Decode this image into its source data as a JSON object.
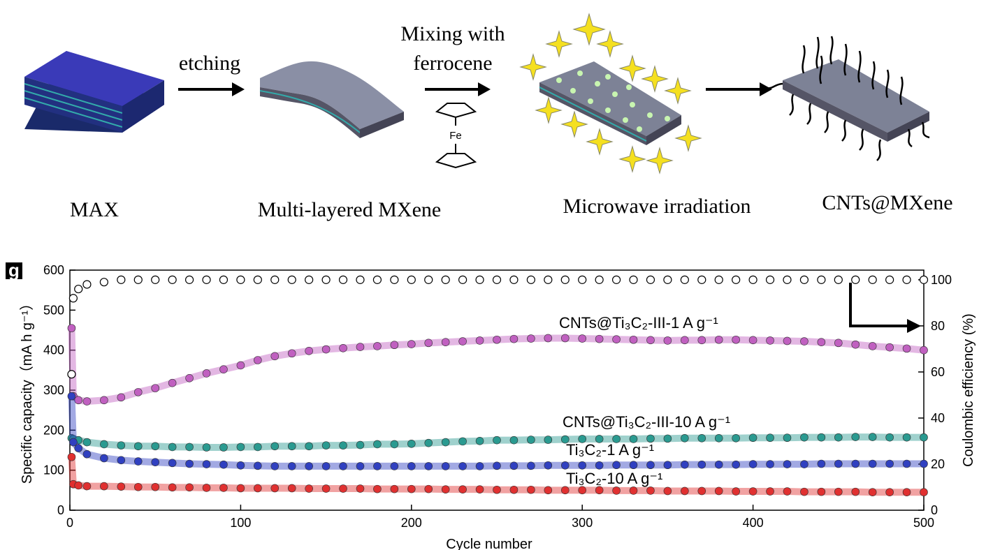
{
  "scheme": {
    "steps": [
      "etching",
      "Mixing with",
      "ferrocene"
    ],
    "fe": "Fe",
    "labels": [
      "MAX",
      "Multi-layered MXene",
      "Microwave irradiation",
      "CNTs@MXene"
    ]
  },
  "chart_data": {
    "type": "scatter",
    "panel": "g",
    "xlabel": "Cycle number",
    "ylabel": "Specific capacity（mA h g⁻¹）",
    "y2label": "Coulombic efficiency (%)",
    "x": [
      1,
      2,
      5,
      10,
      20,
      30,
      40,
      50,
      60,
      70,
      80,
      90,
      100,
      110,
      120,
      130,
      140,
      150,
      160,
      170,
      180,
      190,
      200,
      210,
      220,
      230,
      240,
      250,
      260,
      270,
      280,
      290,
      300,
      310,
      320,
      330,
      340,
      350,
      360,
      370,
      380,
      390,
      400,
      410,
      420,
      430,
      440,
      450,
      460,
      470,
      480,
      490,
      500
    ],
    "xlim": [
      0,
      500
    ],
    "xticks": [
      0,
      100,
      200,
      300,
      400,
      500
    ],
    "ylim": [
      0,
      600
    ],
    "yticks": [
      0,
      100,
      200,
      300,
      400,
      500,
      600
    ],
    "y2lim": [
      0,
      104.2
    ],
    "y2ticks": [
      0,
      20,
      40,
      60,
      80,
      100
    ],
    "series": [
      {
        "name": "CNTs@Ti₃C₂-III-1 A g⁻¹",
        "color": "#c060c0",
        "values": [
          455,
          285,
          275,
          272,
          275,
          282,
          295,
          305,
          318,
          330,
          342,
          352,
          362,
          375,
          385,
          392,
          398,
          402,
          405,
          408,
          410,
          413,
          415,
          418,
          420,
          422,
          424,
          426,
          428,
          429,
          430,
          430,
          429,
          428,
          427,
          426,
          425,
          424,
          425,
          425,
          426,
          426,
          425,
          424,
          423,
          422,
          420,
          418,
          414,
          410,
          407,
          404,
          400
        ]
      },
      {
        "name": "CNTs@Ti₃C₂-III-10 A g⁻¹",
        "color": "#2a9a90",
        "values": [
          180,
          178,
          175,
          170,
          165,
          162,
          160,
          160,
          158,
          158,
          157,
          157,
          158,
          158,
          160,
          160,
          160,
          162,
          162,
          163,
          165,
          165,
          166,
          168,
          170,
          172,
          173,
          175,
          175,
          176,
          176,
          177,
          178,
          178,
          178,
          178,
          179,
          179,
          180,
          180,
          180,
          180,
          181,
          181,
          181,
          182,
          182,
          182,
          183,
          183,
          182,
          182,
          182
        ]
      },
      {
        "name": "Ti₃C₂-1 A g⁻¹",
        "color": "#3040c0",
        "values": [
          285,
          170,
          155,
          140,
          130,
          125,
          122,
          120,
          118,
          116,
          115,
          114,
          112,
          111,
          110,
          110,
          110,
          110,
          110,
          110,
          110,
          110,
          110,
          110,
          110,
          110,
          110,
          111,
          111,
          111,
          112,
          112,
          112,
          112,
          113,
          113,
          113,
          113,
          114,
          114,
          114,
          114,
          115,
          115,
          115,
          115,
          116,
          116,
          116,
          116,
          116,
          116,
          116
        ]
      },
      {
        "name": "Ti₃C₂-10 A g⁻¹",
        "color": "#e03030",
        "values": [
          133,
          65,
          62,
          60,
          60,
          59,
          58,
          58,
          57,
          57,
          56,
          56,
          55,
          55,
          55,
          55,
          54,
          54,
          54,
          54,
          53,
          53,
          53,
          53,
          52,
          52,
          52,
          51,
          51,
          51,
          50,
          50,
          50,
          50,
          49,
          49,
          49,
          48,
          48,
          48,
          48,
          47,
          47,
          47,
          47,
          46,
          46,
          46,
          46,
          45,
          45,
          45,
          45
        ]
      },
      {
        "color": "#000000",
        "axis": "y2",
        "hollow": true,
        "values": [
          59,
          92,
          96,
          98,
          99,
          100,
          100,
          100,
          100,
          100,
          100,
          100,
          100,
          100,
          100,
          100,
          100,
          100,
          100,
          100,
          100,
          100,
          100,
          100,
          100,
          100,
          100,
          100,
          100,
          100,
          100,
          100,
          100,
          100,
          100,
          100,
          100,
          100,
          100,
          100,
          100,
          100,
          100,
          100,
          100,
          100,
          100,
          100,
          100,
          100,
          100,
          100,
          100
        ]
      }
    ]
  }
}
